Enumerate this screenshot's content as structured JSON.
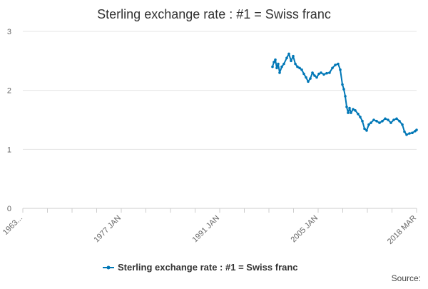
{
  "chart_data": {
    "type": "line",
    "title": "Sterling exchange rate : #1 = Swiss franc",
    "xlabel": "",
    "ylabel": "",
    "x_tick_labels": [
      "1963...",
      "1977 JAN",
      "1991 JAN",
      "2005 JAN",
      "2018 MAR"
    ],
    "y_ticks": [
      0,
      1,
      2,
      3
    ],
    "ylim": [
      0,
      3
    ],
    "grid": "horizontal",
    "legend_position": "bottom-center",
    "source_label": "Source:",
    "colors": {
      "series": "#0077b6",
      "grid": "#e6e6e6",
      "axis": "#cccccc"
    },
    "series": [
      {
        "name": "Sterling exchange rate : #1 = Swiss franc",
        "x": [
          1998.0,
          1998.2,
          1998.4,
          1998.6,
          1998.8,
          1999.0,
          1999.3,
          1999.6,
          2000.0,
          2000.3,
          2000.6,
          2000.9,
          2001.2,
          2001.5,
          2001.8,
          2002.1,
          2002.4,
          2002.7,
          2003.0,
          2003.3,
          2003.6,
          2003.9,
          2004.2,
          2004.5,
          2004.8,
          2005.2,
          2005.6,
          2006.0,
          2006.4,
          2006.8,
          2007.2,
          2007.5,
          2007.8,
          2008.0,
          2008.2,
          2008.4,
          2008.6,
          2008.8,
          2009.0,
          2009.3,
          2009.6,
          2010.0,
          2010.3,
          2010.6,
          2010.9,
          2011.2,
          2011.5,
          2011.8,
          2012.2,
          2012.6,
          2013.0,
          2013.4,
          2013.8,
          2014.2,
          2014.6,
          2015.0,
          2015.4,
          2015.8,
          2016.2,
          2016.5,
          2016.8,
          2017.2,
          2017.6,
          2018.0,
          2018.2
        ],
        "values": [
          2.4,
          2.48,
          2.52,
          2.38,
          2.45,
          2.3,
          2.4,
          2.45,
          2.55,
          2.62,
          2.5,
          2.58,
          2.45,
          2.4,
          2.38,
          2.35,
          2.28,
          2.22,
          2.15,
          2.2,
          2.3,
          2.25,
          2.22,
          2.28,
          2.3,
          2.27,
          2.29,
          2.3,
          2.38,
          2.43,
          2.45,
          2.35,
          2.1,
          2.02,
          1.9,
          1.72,
          1.62,
          1.7,
          1.62,
          1.68,
          1.66,
          1.6,
          1.55,
          1.48,
          1.35,
          1.32,
          1.42,
          1.45,
          1.5,
          1.48,
          1.45,
          1.48,
          1.52,
          1.5,
          1.45,
          1.5,
          1.52,
          1.48,
          1.42,
          1.3,
          1.25,
          1.27,
          1.28,
          1.31,
          1.33
        ]
      }
    ]
  }
}
